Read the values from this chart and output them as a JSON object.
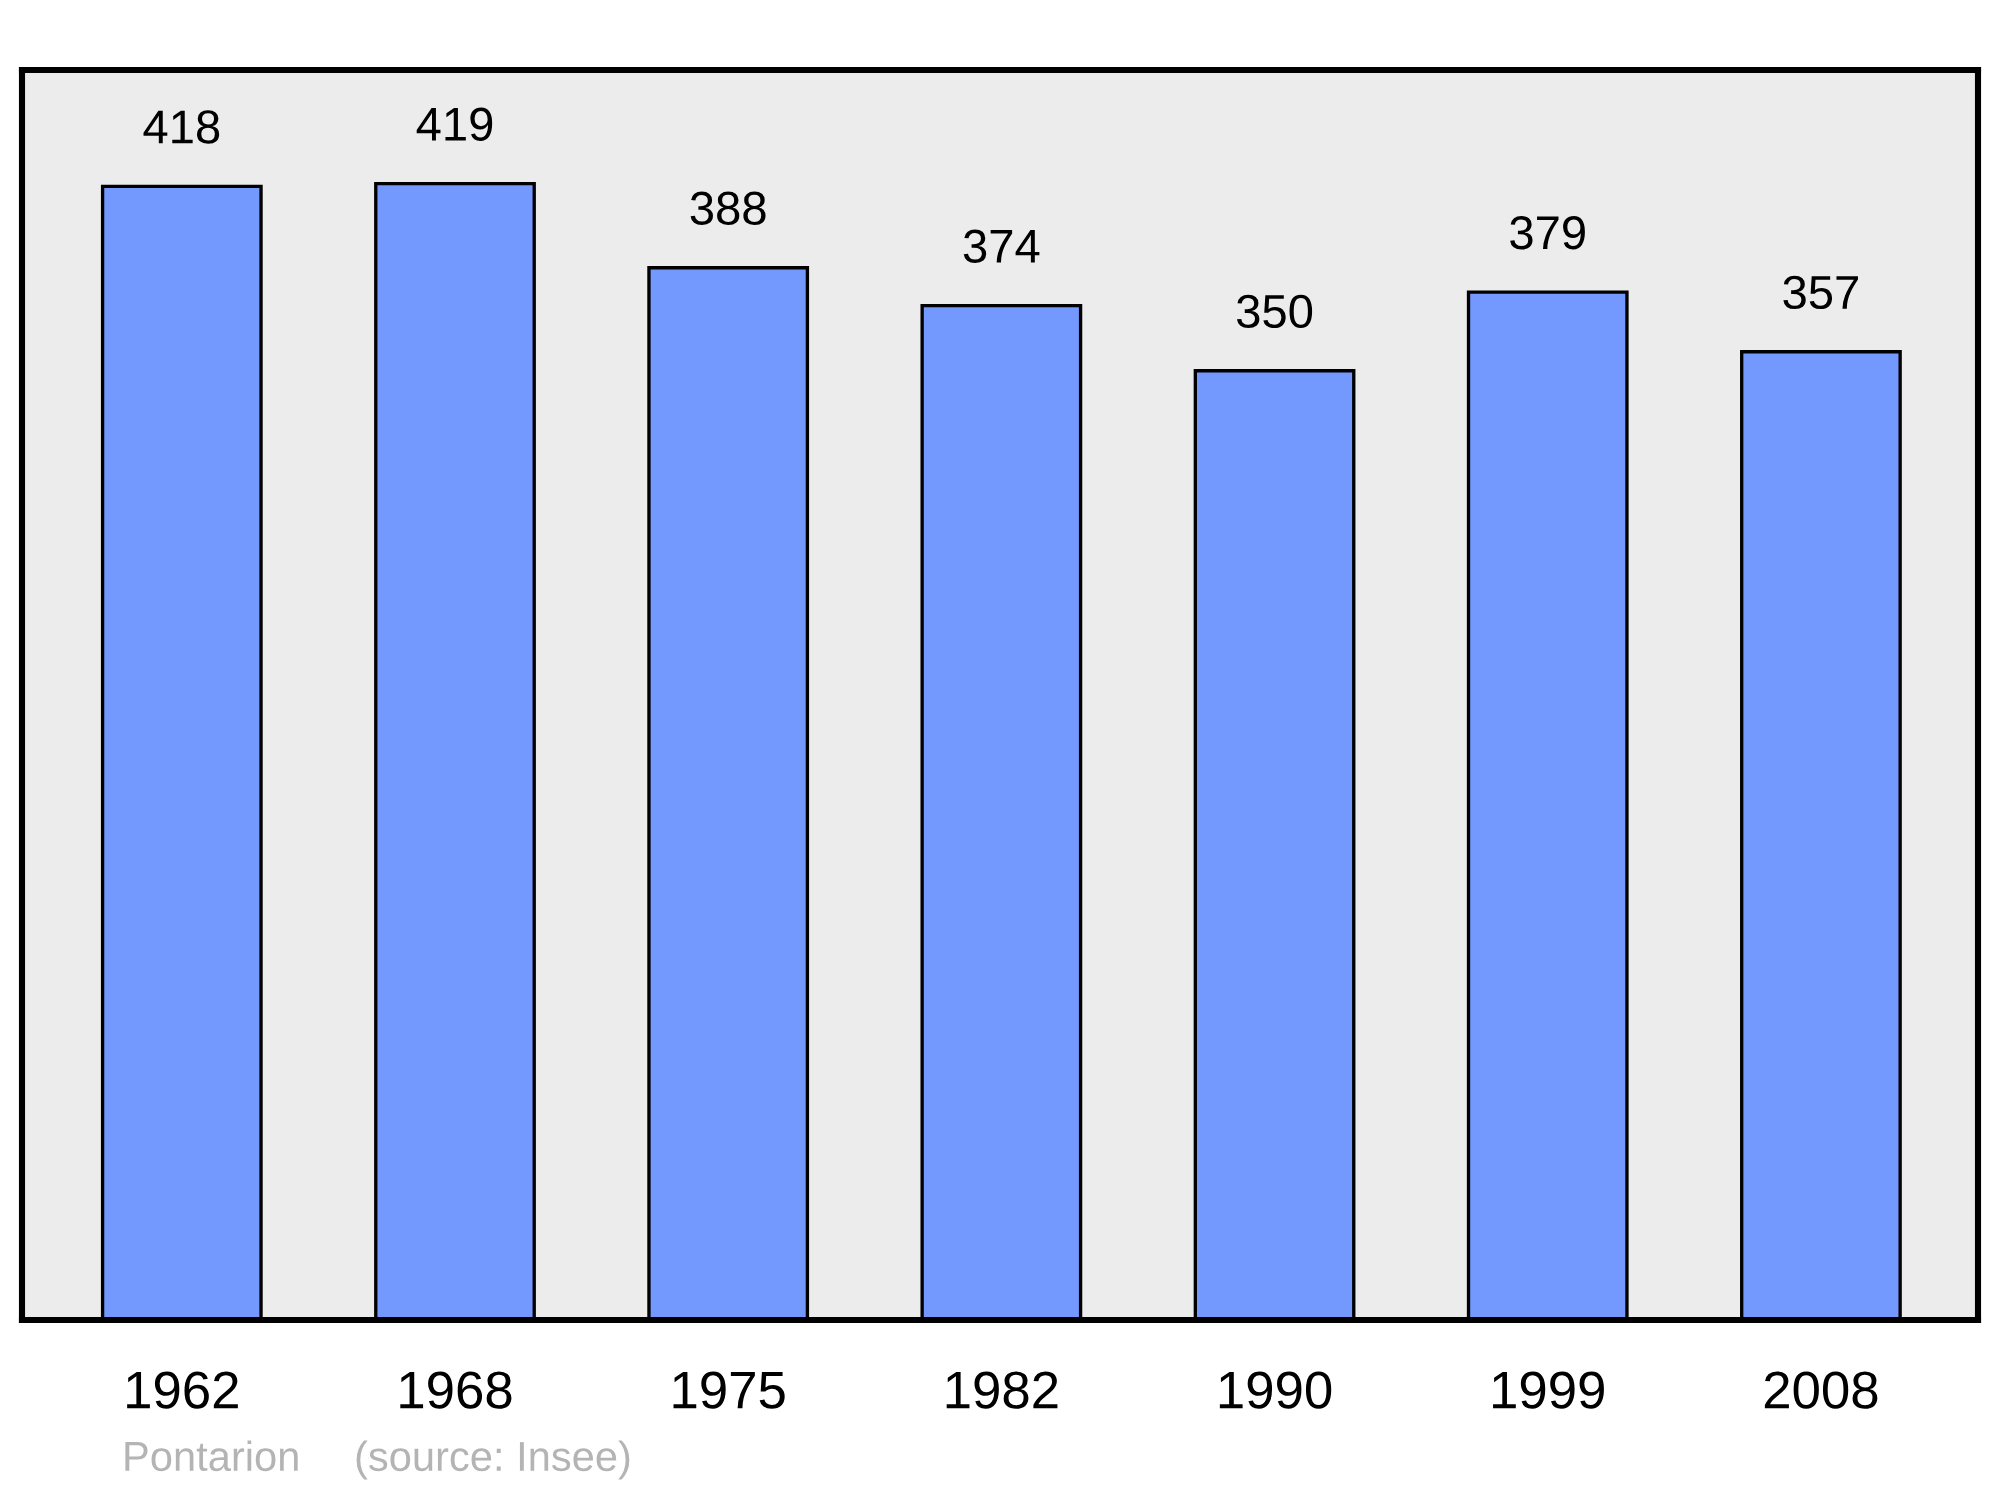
{
  "chart_data": {
    "type": "bar",
    "categories": [
      "1962",
      "1968",
      "1975",
      "1982",
      "1990",
      "1999",
      "2008"
    ],
    "values": [
      418,
      419,
      388,
      374,
      350,
      379,
      357
    ],
    "color": "#7399ff",
    "data_labels": true,
    "grid": false,
    "annotations": [
      "Pontarion",
      "(source: Insee)"
    ]
  }
}
